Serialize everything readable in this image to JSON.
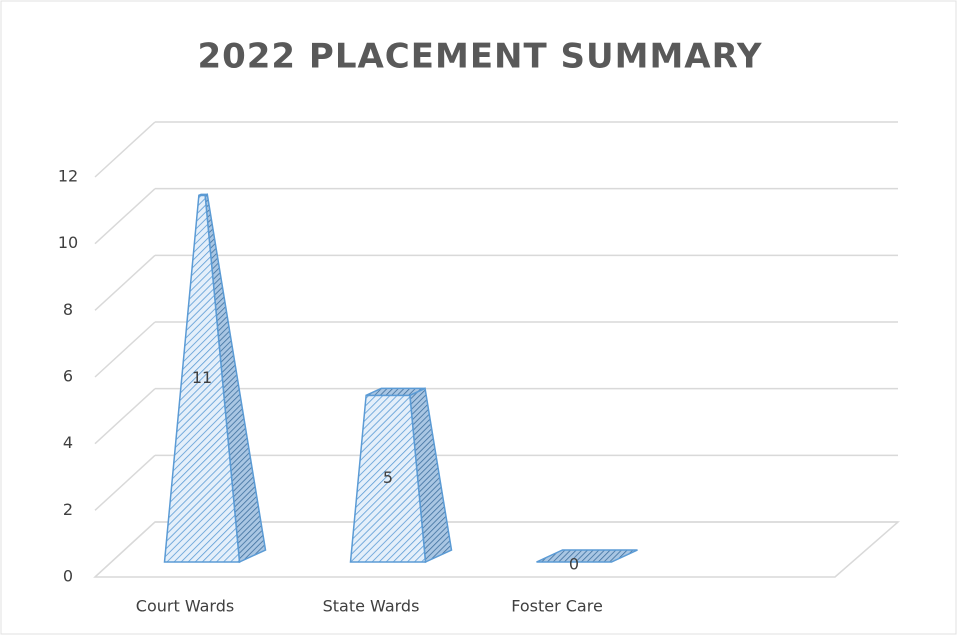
{
  "chart_data": {
    "type": "pyramid3d",
    "title": "2022 PLACEMENT SUMMARY",
    "categories": [
      "Court Wards",
      "State Wards",
      "Foster Care"
    ],
    "values": [
      11,
      5,
      0
    ],
    "color": "#5b9bd5",
    "ylim": [
      0,
      12
    ],
    "yticks": [
      0,
      2,
      4,
      6,
      8,
      10,
      12
    ],
    "grid": true
  }
}
